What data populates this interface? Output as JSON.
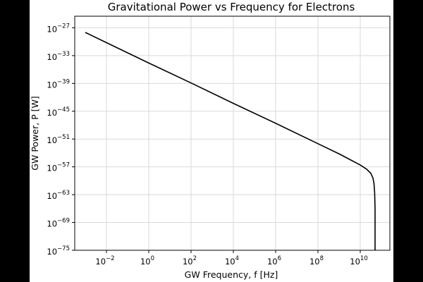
{
  "chart_data": {
    "type": "line",
    "title": "Gravitational Power vs Frequency for Electrons",
    "xlabel": "GW Frequency, f [Hz]",
    "ylabel": "GW Power, P [W]",
    "xscale": "log",
    "yscale": "log",
    "xlim_exp": [
      -3.5,
      11.4
    ],
    "ylim_exp": [
      -75,
      -24.5
    ],
    "grid": true,
    "line_color": "#000000",
    "grid_color": "#d9d9d9",
    "x_ticks": [
      {
        "base": "10",
        "exp": "−2",
        "value_exp": -2
      },
      {
        "base": "10",
        "exp": "0",
        "value_exp": 0
      },
      {
        "base": "10",
        "exp": "2",
        "value_exp": 2
      },
      {
        "base": "10",
        "exp": "4",
        "value_exp": 4
      },
      {
        "base": "10",
        "exp": "6",
        "value_exp": 6
      },
      {
        "base": "10",
        "exp": "8",
        "value_exp": 8
      },
      {
        "base": "10",
        "exp": "10",
        "value_exp": 10
      }
    ],
    "y_ticks": [
      {
        "base": "10",
        "exp": "−27",
        "value_exp": -27
      },
      {
        "base": "10",
        "exp": "−33",
        "value_exp": -33
      },
      {
        "base": "10",
        "exp": "−39",
        "value_exp": -39
      },
      {
        "base": "10",
        "exp": "−45",
        "value_exp": -45
      },
      {
        "base": "10",
        "exp": "−51",
        "value_exp": -51
      },
      {
        "base": "10",
        "exp": "−57",
        "value_exp": -57
      },
      {
        "base": "10",
        "exp": "−63",
        "value_exp": -63
      },
      {
        "base": "10",
        "exp": "−69",
        "value_exp": -69
      },
      {
        "base": "10",
        "exp": "−75",
        "value_exp": -75
      }
    ],
    "series": [
      {
        "log10_x": [
          -3.0,
          -2.0,
          0.0,
          2.0,
          4.0,
          6.0,
          8.0,
          9.0,
          9.5,
          10.0,
          10.3,
          10.5,
          10.6,
          10.65,
          10.68,
          10.7,
          10.7,
          10.7
        ],
        "log10_y": [
          -28.0,
          -30.2,
          -34.6,
          -38.9,
          -43.3,
          -47.6,
          -52.0,
          -54.2,
          -55.4,
          -56.6,
          -57.5,
          -58.4,
          -59.4,
          -60.6,
          -62.5,
          -66.0,
          -70.0,
          -75.0
        ]
      }
    ]
  }
}
